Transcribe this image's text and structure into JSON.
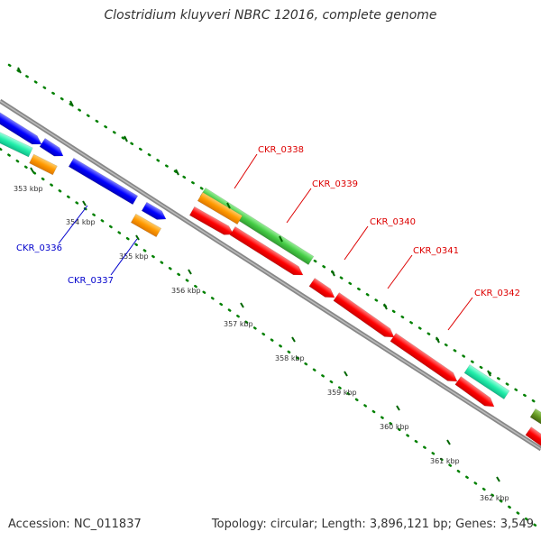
{
  "title": "Clostridium kluyveri NBRC 12016, complete genome",
  "footer": {
    "accession": "Accession: NC_011837",
    "summary": "Topology: circular; Length: 3,896,121 bp; Genes: 3,549"
  },
  "scale": {
    "unit": "kbp",
    "ticks": [
      "353 kbp",
      "354 kbp",
      "355 kbp",
      "356 kbp",
      "357 kbp",
      "358 kbp",
      "359 kbp",
      "360 kbp",
      "361 kbp",
      "362 kbp"
    ]
  },
  "gene_labels": [
    {
      "name": "CKR_0336",
      "color": "#0000cc"
    },
    {
      "name": "CKR_0337",
      "color": "#0000cc"
    },
    {
      "name": "CKR_0338",
      "color": "#dd0000"
    },
    {
      "name": "CKR_0339",
      "color": "#dd0000"
    },
    {
      "name": "CKR_0340",
      "color": "#dd0000"
    },
    {
      "name": "CKR_0341",
      "color": "#dd0000"
    },
    {
      "name": "CKR_0342",
      "color": "#dd0000"
    }
  ],
  "colors": {
    "red": "#ff0000",
    "blue": "#0000ff",
    "green": "#44cc44",
    "orange": "#ff9900",
    "teal": "#22eeaa",
    "olive": "#669922",
    "backbone": "#777777",
    "dots": "#008000"
  }
}
